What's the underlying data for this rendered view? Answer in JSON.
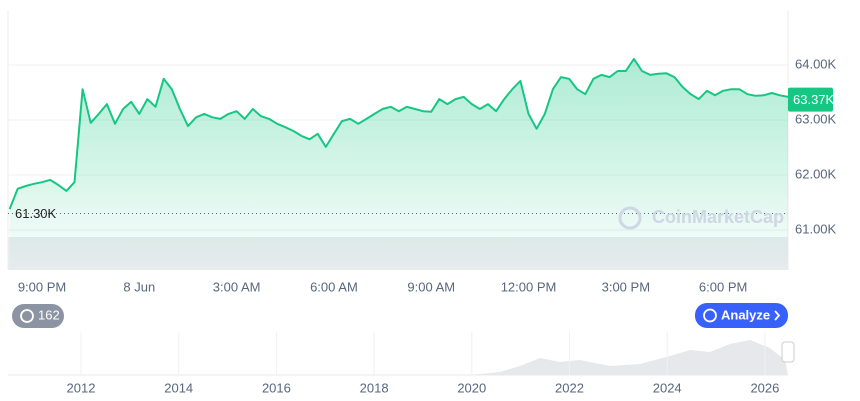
{
  "chart_data": {
    "type": "line",
    "categories": [
      null,
      null,
      null,
      null,
      "9:00 PM",
      null,
      null,
      null,
      null,
      null,
      null,
      null,
      null,
      null,
      null,
      null,
      "8 Jun",
      null,
      null,
      null,
      null,
      null,
      null,
      null,
      null,
      null,
      null,
      null,
      "3:00 AM",
      null,
      null,
      null,
      null,
      null,
      null,
      null,
      null,
      null,
      null,
      null,
      "6:00 AM",
      null,
      null,
      null,
      null,
      null,
      null,
      null,
      null,
      null,
      null,
      null,
      "9:00 AM",
      null,
      null,
      null,
      null,
      null,
      null,
      null,
      null,
      null,
      null,
      null,
      "12:00 PM",
      null,
      null,
      null,
      null,
      null,
      null,
      null,
      null,
      null,
      null,
      null,
      "3:00 PM",
      null,
      null,
      null,
      null,
      null,
      null,
      null,
      null,
      null,
      null,
      null,
      "6:00 PM",
      null,
      null,
      null,
      null,
      null,
      null,
      null,
      null
    ],
    "series": [
      {
        "color": "#16c784",
        "values": [
          61380,
          61750,
          61800,
          61840,
          61870,
          61910,
          61820,
          61710,
          61870,
          63560,
          62950,
          63110,
          63290,
          62930,
          63200,
          63330,
          63110,
          63380,
          63240,
          63750,
          63560,
          63200,
          62890,
          63050,
          63110,
          63050,
          63020,
          63110,
          63160,
          63020,
          63200,
          63070,
          63020,
          62930,
          62870,
          62800,
          62710,
          62650,
          62750,
          62510,
          62750,
          62980,
          63020,
          62930,
          63020,
          63110,
          63200,
          63240,
          63160,
          63240,
          63200,
          63160,
          63150,
          63380,
          63290,
          63380,
          63420,
          63290,
          63200,
          63290,
          63160,
          63380,
          63560,
          63710,
          63110,
          62840,
          63110,
          63560,
          63780,
          63750,
          63560,
          63470,
          63750,
          63820,
          63780,
          63890,
          63890,
          64110,
          63890,
          63820,
          63840,
          63850,
          63780,
          63600,
          63470,
          63380,
          63530,
          63450,
          63530,
          63560,
          63560,
          63470,
          63440,
          63450,
          63490,
          63450,
          63420
        ]
      }
    ],
    "ylim": [
      60300,
      65000
    ],
    "yticks": [
      {
        "value": 64000,
        "label": "64.00K"
      },
      {
        "value": 63000,
        "label": "63.00K"
      },
      {
        "value": 62000,
        "label": "62.00K"
      },
      {
        "value": 61000,
        "label": "61.00K"
      }
    ],
    "grid": true,
    "reference_line": {
      "value": 61300,
      "label": "61.30K"
    },
    "price_tag": {
      "value": 63370,
      "label": "63.37K"
    },
    "watermark": "CoinMarketCap",
    "history_button": "162",
    "analyze_button": "Analyze",
    "navigator_years": [
      "2012",
      "2014",
      "2016",
      "2018",
      "2020",
      "2022",
      "2024",
      "2026"
    ]
  }
}
